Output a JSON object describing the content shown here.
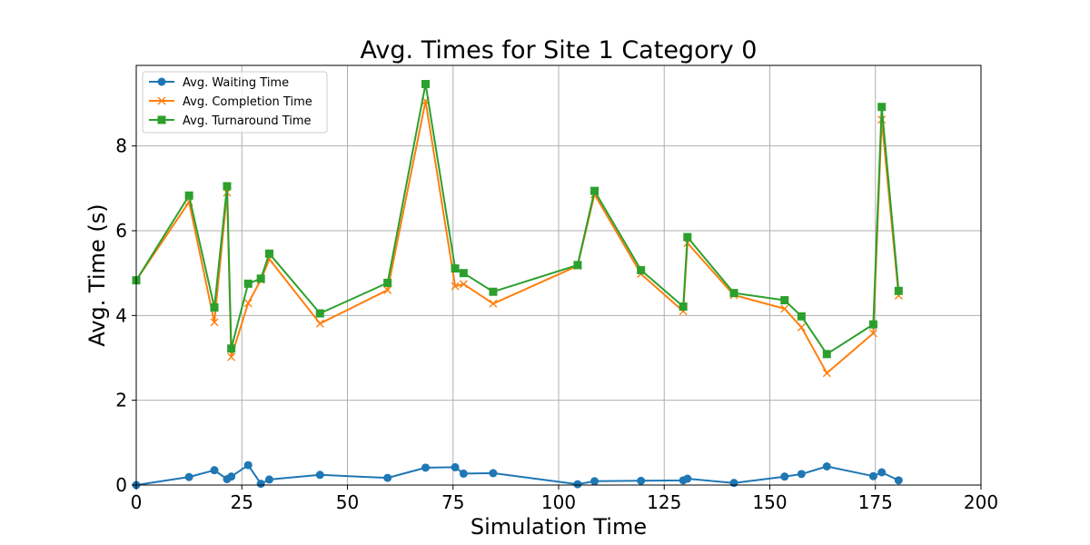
{
  "chart_data": {
    "type": "line",
    "title": "Avg. Times for Site 1 Category 0",
    "xlabel": "Simulation Time",
    "ylabel": "Avg. Time (s)",
    "xlim": [
      0,
      200
    ],
    "ylim": [
      0,
      9.9
    ],
    "xticks": [
      0,
      25,
      50,
      75,
      100,
      125,
      150,
      175,
      200
    ],
    "yticks": [
      0,
      2,
      4,
      6,
      8
    ],
    "grid": true,
    "legend_position": "upper-left",
    "x": [
      0,
      12.5,
      18.5,
      21.5,
      22.5,
      26.5,
      29.5,
      31.5,
      43.5,
      59.5,
      68.5,
      75.5,
      77.5,
      84.5,
      104.5,
      108.5,
      119.5,
      129.5,
      130.5,
      141.5,
      153.5,
      157.5,
      163.5,
      174.5,
      176.5,
      180.5
    ],
    "series": [
      {
        "name": "Avg. Waiting Time",
        "color": "#1f77b4",
        "marker": "circle",
        "values": [
          0.0,
          0.19,
          0.35,
          0.14,
          0.2,
          0.47,
          0.03,
          0.13,
          0.24,
          0.17,
          0.41,
          0.42,
          0.27,
          0.28,
          0.02,
          0.09,
          0.1,
          0.11,
          0.15,
          0.05,
          0.2,
          0.26,
          0.44,
          0.21,
          0.3,
          0.11
        ]
      },
      {
        "name": "Avg. Completion Time",
        "color": "#ff7f0e",
        "marker": "x",
        "values": [
          4.83,
          6.68,
          3.84,
          6.9,
          3.02,
          4.29,
          4.84,
          5.33,
          3.81,
          4.6,
          9.06,
          4.69,
          4.74,
          4.28,
          5.17,
          6.86,
          4.98,
          4.1,
          5.71,
          4.48,
          4.16,
          3.72,
          2.64,
          3.58,
          8.62,
          4.47
        ]
      },
      {
        "name": "Avg. Turnaround Time",
        "color": "#2ca02c",
        "marker": "square",
        "values": [
          4.83,
          6.83,
          4.19,
          7.05,
          3.22,
          4.75,
          4.87,
          5.46,
          4.05,
          4.77,
          9.46,
          5.11,
          5.0,
          4.56,
          5.19,
          6.94,
          5.07,
          4.21,
          5.85,
          4.53,
          4.36,
          3.98,
          3.09,
          3.79,
          8.92,
          4.58
        ]
      }
    ]
  }
}
